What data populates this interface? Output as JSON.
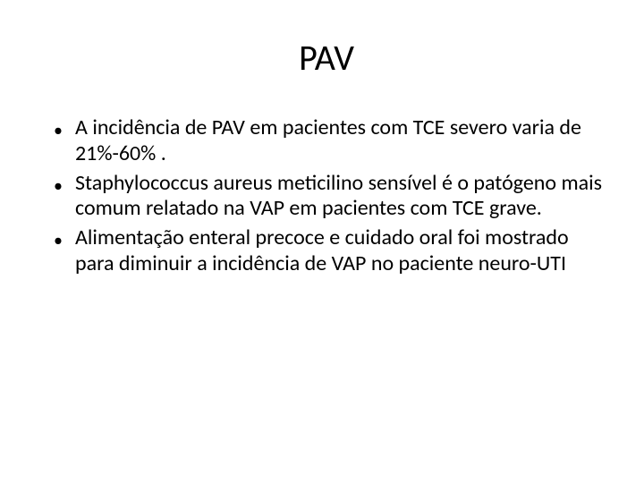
{
  "slide": {
    "title": "PAV",
    "bullets": [
      {
        "marker": "•",
        "text": "A incidência de PAV em pacientes com TCE severo varia de 21%-60% ."
      },
      {
        "marker": "•",
        "text": "Staphylococcus aureus meticilino sensível é o patógeno mais comum relatado na VAP em pacientes com TCE grave."
      },
      {
        "marker": "•",
        "text": " Alimentação enteral precoce e cuidado oral foi mostrado para diminuir a incidência de VAP no paciente neuro-UTI"
      }
    ]
  },
  "style": {
    "background_color": "#ffffff",
    "text_color": "#000000",
    "title_fontsize": 40,
    "body_fontsize": 24,
    "font_family": "Calibri"
  }
}
